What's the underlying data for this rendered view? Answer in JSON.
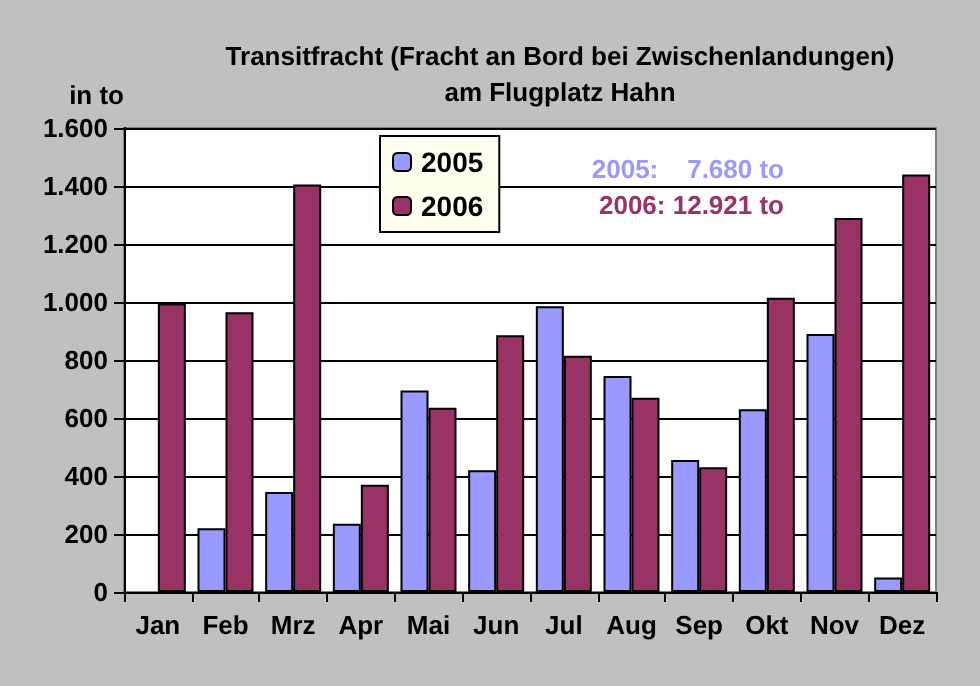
{
  "chart_data": {
    "type": "bar",
    "title": "Transitfracht (Fracht an Bord bei Zwischenlandungen)\nam Flugplatz Hahn",
    "ylabel": "in to",
    "categories": [
      "Jan",
      "Feb",
      "Mrz",
      "Apr",
      "Mai",
      "Jun",
      "Jul",
      "Aug",
      "Sep",
      "Okt",
      "Nov",
      "Dez"
    ],
    "series": [
      {
        "name": "2005",
        "color": "#9999ff",
        "values": [
          null,
          220,
          345,
          235,
          695,
          420,
          985,
          745,
          455,
          630,
          890,
          50
        ]
      },
      {
        "name": "2006",
        "color": "#993366",
        "values": [
          995,
          965,
          1405,
          370,
          635,
          885,
          815,
          670,
          430,
          1015,
          1290,
          1440
        ]
      }
    ],
    "ylim": [
      0,
      1600
    ],
    "yticks": [
      0,
      200,
      400,
      600,
      800,
      {
        "value": 1000,
        "label": "1.000"
      },
      {
        "value": 1200,
        "label": "1.200"
      },
      {
        "value": 1400,
        "label": "1.400"
      },
      {
        "value": 1600,
        "label": "1.600"
      }
    ],
    "grid": "y",
    "legend": "top",
    "annotations": [
      "2005:    7.680 to",
      "2006: 12.921 to"
    ]
  }
}
